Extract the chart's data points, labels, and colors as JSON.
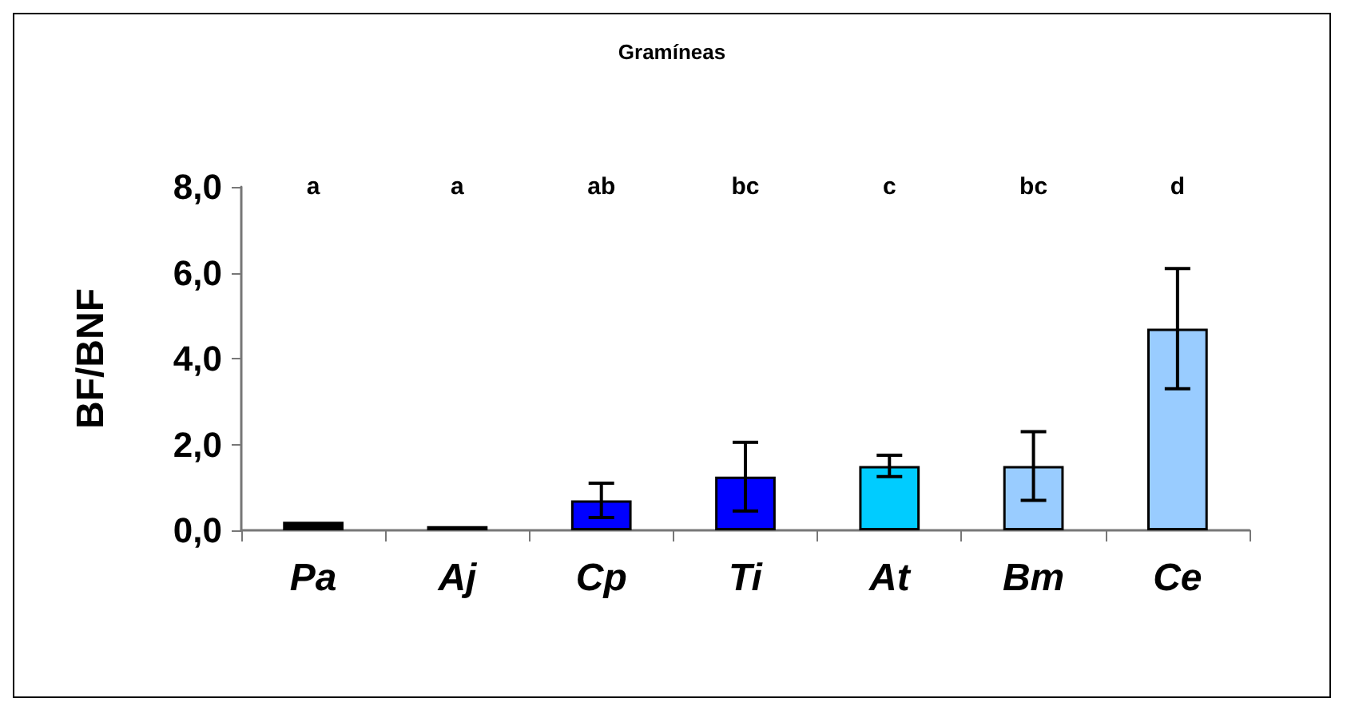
{
  "chart_data": {
    "type": "bar",
    "title": "Gramíneas",
    "ylabel": "BF/BNF",
    "categories": [
      "Pa",
      "Aj",
      "Cp",
      "Ti",
      "At",
      "Bm",
      "Ce"
    ],
    "values": [
      0.2,
      0.1,
      0.7,
      1.25,
      1.5,
      1.5,
      4.7
    ],
    "colors": [
      "#000000",
      "#000000",
      "#0000ff",
      "#0000ff",
      "#00ccff",
      "#99ccff",
      "#99ccff"
    ],
    "errors": [
      null,
      null,
      0.4,
      0.8,
      0.25,
      0.8,
      1.4
    ],
    "ylim": [
      0,
      8
    ],
    "yticks": [
      {
        "value": 0,
        "label": "0,0"
      },
      {
        "value": 2,
        "label": "2,0"
      },
      {
        "value": 4,
        "label": "4,0"
      },
      {
        "value": 6,
        "label": "6,0"
      },
      {
        "value": 8,
        "label": "8,0"
      }
    ],
    "grid": false,
    "annotations": [
      "a",
      "a",
      "ab",
      "bc",
      "c",
      "bc",
      "d"
    ]
  }
}
